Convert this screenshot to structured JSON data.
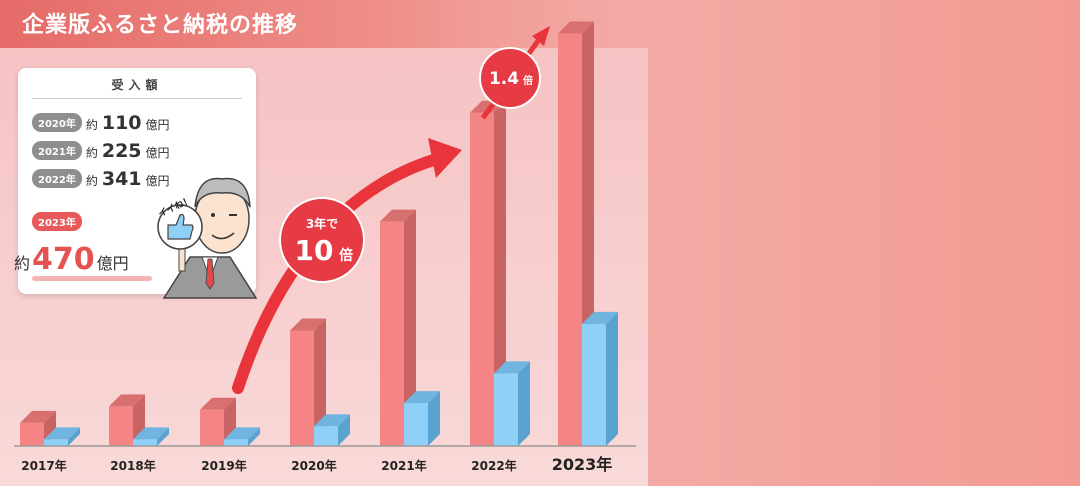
{
  "header": {
    "title": "企業版ふるさと納税の推移"
  },
  "card": {
    "heading": "受入額",
    "rows": [
      {
        "year": "2020年",
        "prefix": "約",
        "amount": "110",
        "unit": "億円"
      },
      {
        "year": "2021年",
        "prefix": "約",
        "amount": "225",
        "unit": "億円"
      },
      {
        "year": "2022年",
        "prefix": "約",
        "amount": "341",
        "unit": "億円"
      }
    ],
    "highlight": {
      "year": "2023年",
      "prefix": "約",
      "amount": "470",
      "unit": "億円"
    }
  },
  "badges": {
    "growth_10x": {
      "line1": "3年で",
      "line2": "10",
      "line2_suffix": "倍"
    },
    "growth_14x": {
      "value": "1.4",
      "suffix": "倍"
    }
  },
  "character": {
    "speech": "イイね！"
  },
  "colors": {
    "bar_front": "#f58585",
    "bar_side": "#c86464",
    "bar_top": "#d97070",
    "blue_front": "#8fd0f8",
    "blue_side": "#5aa3d0",
    "blue_top": "#6fb5e0",
    "arrow": "#e8343a",
    "badge": "#e63a45"
  },
  "chart_data": {
    "type": "bar",
    "categories": [
      "2017年",
      "2018年",
      "2019年",
      "2020年",
      "2021年",
      "2022年",
      "2023年"
    ],
    "series": [
      {
        "values": [
          7,
          12,
          11,
          35,
          68,
          101,
          125
        ]
      },
      {
        "values": [
          2,
          2,
          2,
          6,
          13,
          22,
          37
        ]
      }
    ],
    "title": "企業版ふるさと納税の推移",
    "xlabel": "",
    "ylabel": "",
    "grid": false
  }
}
